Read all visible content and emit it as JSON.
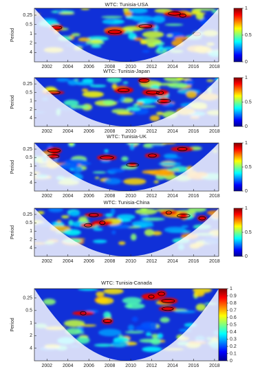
{
  "chart_data": [
    {
      "type": "wavelet",
      "title": "WTC: Tunisia-USA",
      "y_label": "Period",
      "xlim": [
        2000.8,
        2018.4
      ],
      "xticks": [
        2002,
        2004,
        2006,
        2008,
        2010,
        2012,
        2014,
        2016,
        2018
      ],
      "ylim": [
        0.15,
        8
      ],
      "yticks": [
        0.25,
        0.5,
        1,
        2,
        4
      ],
      "y_scale": "log",
      "y_inverted": true,
      "colorbar_lim": [
        0,
        1
      ],
      "colorbar_ticks": [
        0,
        0.5,
        1
      ]
    },
    {
      "type": "wavelet",
      "title": "WTC: Tunisia-Japan",
      "y_label": "Period",
      "xlim": [
        2000.8,
        2018.4
      ],
      "xticks": [
        2002,
        2004,
        2006,
        2008,
        2010,
        2012,
        2014,
        2016,
        2018
      ],
      "ylim": [
        0.15,
        8
      ],
      "yticks": [
        0.25,
        0.5,
        1,
        2,
        4
      ],
      "y_scale": "log",
      "y_inverted": true,
      "colorbar_lim": [
        0,
        1
      ],
      "colorbar_ticks": [
        0,
        0.5,
        1
      ]
    },
    {
      "type": "wavelet",
      "title": "WTC: Tunisia-UK",
      "y_label": "Period",
      "xlim": [
        2000.8,
        2018.4
      ],
      "xticks": [
        2002,
        2004,
        2006,
        2008,
        2010,
        2012,
        2014,
        2016,
        2018
      ],
      "ylim": [
        0.15,
        8
      ],
      "yticks": [
        0.25,
        0.5,
        1,
        2,
        4
      ],
      "y_scale": "log",
      "y_inverted": true,
      "colorbar_lim": [
        0,
        1
      ],
      "colorbar_ticks": [
        0,
        0.5,
        1
      ]
    },
    {
      "type": "wavelet",
      "title": "WTC: Tunisia-China",
      "y_label": "Period",
      "xlim": [
        2000.8,
        2018.4
      ],
      "xticks": [
        2002,
        2004,
        2006,
        2008,
        2010,
        2012,
        2014,
        2016,
        2018
      ],
      "ylim": [
        0.15,
        8
      ],
      "yticks": [
        0.25,
        0.5,
        1,
        2,
        4
      ],
      "y_scale": "log",
      "y_inverted": true,
      "colorbar_lim": [
        0,
        1
      ],
      "colorbar_ticks": [
        0,
        0.5,
        1
      ]
    },
    {
      "type": "wavelet",
      "title": "WTC: Tunisia-Canada",
      "y_label": "Period",
      "xlim": [
        2000.8,
        2018.4
      ],
      "xticks": [
        2002,
        2004,
        2006,
        2008,
        2010,
        2012,
        2014,
        2016,
        2018
      ],
      "ylim": [
        0.15,
        8
      ],
      "yticks": [
        0.25,
        0.5,
        1,
        2,
        4
      ],
      "y_scale": "log",
      "y_inverted": true,
      "colorbar_lim": [
        0,
        1
      ],
      "colorbar_ticks": [
        0,
        0.1,
        0.2,
        0.3,
        0.4,
        0.5,
        0.6,
        0.7,
        0.8,
        0.9,
        1
      ]
    }
  ]
}
